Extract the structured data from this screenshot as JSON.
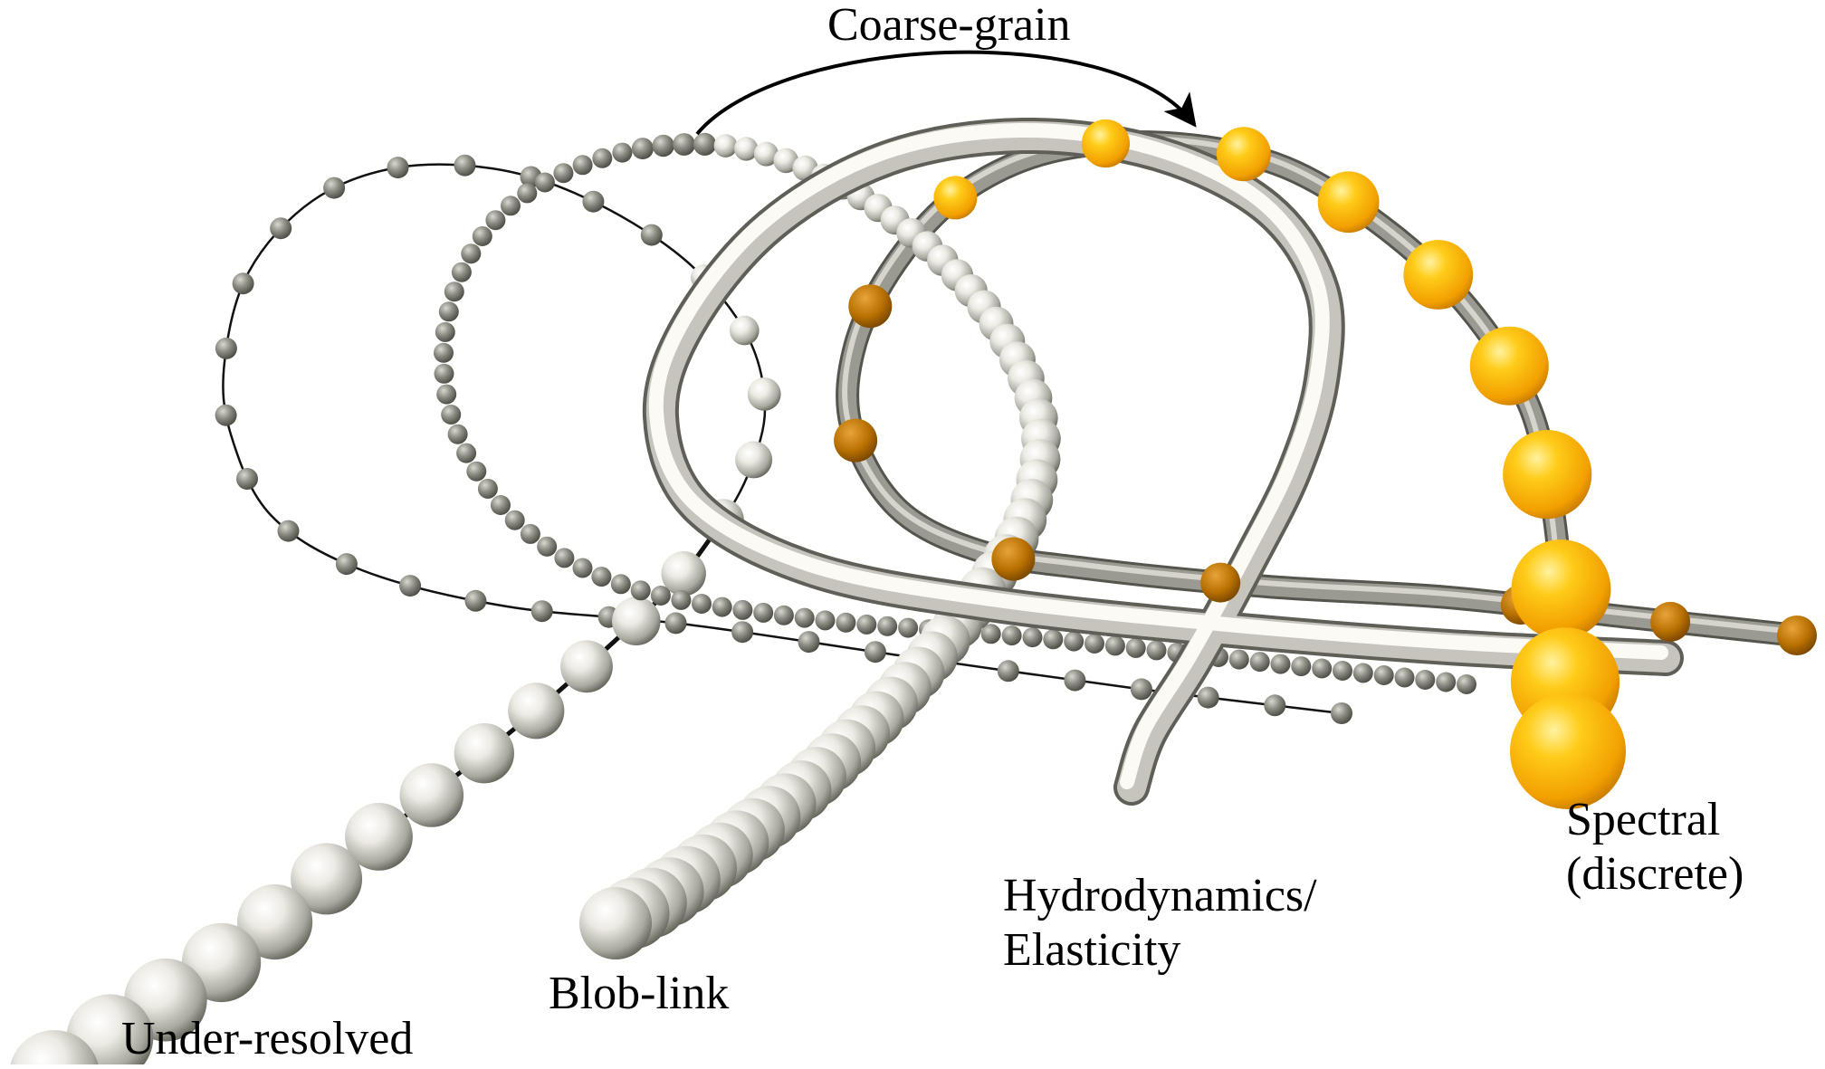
{
  "labels": {
    "coarse_grain": "Coarse-grain",
    "under_resolved": "Under-resolved",
    "blob_link": "Blob-link",
    "hydro_line1": "Hydrodynamics/",
    "hydro_line2": "Elasticity",
    "spectral_line1": "Spectral",
    "spectral_line2": "(discrete)"
  },
  "colors": {
    "bead_light": "#f4f2ec",
    "bead_dark": "#6e6e66",
    "tube_light": "#f6f4ee",
    "tube_dark": "#77776f",
    "gold_light": "#ffd43a",
    "gold_mid": "#f6a800",
    "gold_dark": "#a86200",
    "connector": "#111111"
  }
}
